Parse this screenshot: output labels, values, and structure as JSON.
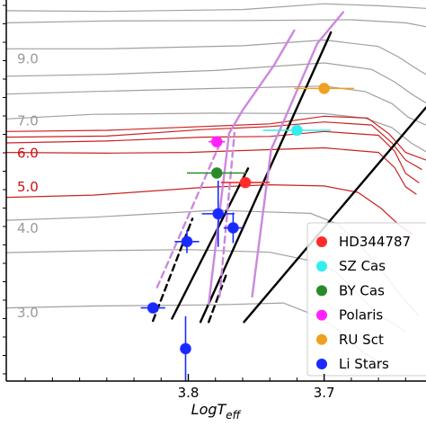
{
  "chart_data": {
    "type": "scatter",
    "x_label": "LogT_eff",
    "x_label_base": "LogT",
    "x_label_sub": "eff",
    "x_range": [
      3.934,
      3.625
    ],
    "y_range": [
      0.0,
      1.0
    ],
    "x_ticks": [
      {
        "value": 3.8,
        "label": "3.8"
      },
      {
        "value": 3.7,
        "label": "3.7"
      }
    ],
    "mass_labels": [
      {
        "text": "9.0",
        "color": "#999999",
        "y": 0.845
      },
      {
        "text": "7.0",
        "color": "#999999",
        "y": 0.683
      },
      {
        "text": "6.0",
        "color": "#cc1111",
        "y": 0.598
      },
      {
        "text": "5.0",
        "color": "#cc1111",
        "y": 0.51
      },
      {
        "text": "4.0",
        "color": "#999999",
        "y": 0.401
      },
      {
        "text": "3.0",
        "color": "#999999",
        "y": 0.179
      }
    ],
    "legend": [
      {
        "label": "HD344787",
        "color": "#ff2b2b"
      },
      {
        "label": "SZ Cas",
        "color": "#33eeee"
      },
      {
        "label": "BY Cas",
        "color": "#2a8a2a"
      },
      {
        "label": "Polaris",
        "color": "#ff22ff"
      },
      {
        "label": "RU Sct",
        "color": "#f0a020"
      },
      {
        "label": "Li Stars",
        "color": "#1a2aff"
      }
    ],
    "stars": [
      {
        "name": "HD344787",
        "color": "#ff2b2b",
        "x": 3.758,
        "y": 0.521,
        "xerr": 0.018,
        "yerr": 0.0
      },
      {
        "name": "SZ Cas",
        "color": "#33eeee",
        "x": 3.72,
        "y": 0.658,
        "xerr": 0.025,
        "yerr": 0.0
      },
      {
        "name": "BY Cas",
        "color": "#2a8a2a",
        "x": 3.779,
        "y": 0.546,
        "xerr": 0.022,
        "yerr": 0.0
      },
      {
        "name": "Polaris",
        "color": "#ff22ff",
        "x": 3.779,
        "y": 0.628,
        "xerr": 0.006,
        "yerr": 0.0
      },
      {
        "name": "RU Sct",
        "color": "#f0a020",
        "x": 3.7,
        "y": 0.768,
        "xerr": 0.022,
        "yerr": 0.0
      },
      {
        "name": "Li Stars",
        "color": "#1a2aff",
        "x": 3.778,
        "y": 0.439,
        "xerr": 0.012,
        "yerr": 0.087
      },
      {
        "name": "Li Stars",
        "color": "#1a2aff",
        "x": 3.767,
        "y": 0.402,
        "xerr": 0.007,
        "yerr": 0.04
      },
      {
        "name": "Li Stars",
        "color": "#1a2aff",
        "x": 3.801,
        "y": 0.366,
        "xerr": 0.009,
        "yerr": 0.03
      },
      {
        "name": "Li Stars",
        "color": "#1a2aff",
        "x": 3.826,
        "y": 0.192,
        "xerr": 0.009,
        "yerr": 0.0
      },
      {
        "name": "Li Stars",
        "color": "#1a2aff",
        "x": 3.802,
        "y": 0.085,
        "xerr": 0.0,
        "yerr": 0.085
      }
    ],
    "edges": [
      {
        "color": "#000000",
        "dash": false,
        "points": [
          [
            3.791,
            0.155
          ],
          [
            3.695,
            0.915
          ]
        ]
      },
      {
        "color": "#000000",
        "dash": false,
        "points": [
          [
            3.812,
            0.164
          ],
          [
            3.756,
            0.558
          ]
        ]
      },
      {
        "color": "#000000",
        "dash": false,
        "points": [
          [
            3.759,
            0.155
          ],
          [
            3.625,
            0.718
          ]
        ]
      },
      {
        "color": "#000000",
        "dash": true,
        "points": [
          [
            3.826,
            0.158
          ],
          [
            3.797,
            0.426
          ]
        ]
      },
      {
        "color": "#000000",
        "dash": true,
        "points": [
          [
            3.785,
            0.155
          ],
          [
            3.772,
            0.28
          ]
        ]
      },
      {
        "color": "#cc88dd",
        "dash": false,
        "points": [
          [
            3.785,
            0.202
          ],
          [
            3.77,
            0.65
          ],
          [
            3.76,
            0.711
          ],
          [
            3.737,
            0.828
          ],
          [
            3.722,
            0.92
          ]
        ]
      },
      {
        "color": "#cc88dd",
        "dash": false,
        "points": [
          [
            3.753,
            0.222
          ],
          [
            3.739,
            0.608
          ],
          [
            3.73,
            0.68
          ],
          [
            3.705,
            0.886
          ],
          [
            3.686,
            0.968
          ]
        ]
      },
      {
        "color": "#cc88dd",
        "dash": true,
        "points": [
          [
            3.823,
            0.246
          ],
          [
            3.778,
            0.613
          ]
        ]
      },
      {
        "color": "#cc88dd",
        "dash": true,
        "points": [
          [
            3.777,
            0.222
          ],
          [
            3.766,
            0.651
          ]
        ]
      }
    ],
    "tracks": [
      {
        "color": "#a0a0a0",
        "points": [
          [
            3.934,
            0.192
          ],
          [
            3.87,
            0.197
          ],
          [
            3.78,
            0.2
          ],
          [
            3.73,
            0.205
          ],
          [
            3.705,
            0.17
          ],
          [
            3.69,
            0.135
          ],
          [
            3.672,
            0.077
          ],
          [
            3.655,
            0.04
          ]
        ]
      },
      {
        "color": "#a0a0a0",
        "points": [
          [
            3.934,
            0.337
          ],
          [
            3.87,
            0.342
          ],
          [
            3.8,
            0.345
          ],
          [
            3.74,
            0.338
          ],
          [
            3.705,
            0.312
          ],
          [
            3.69,
            0.283
          ],
          [
            3.676,
            0.23
          ],
          [
            3.66,
            0.175
          ],
          [
            3.64,
            0.13
          ]
        ]
      },
      {
        "color": "#a0a0a0",
        "points": [
          [
            3.934,
            0.422
          ],
          [
            3.87,
            0.43
          ],
          [
            3.78,
            0.448
          ],
          [
            3.71,
            0.44
          ],
          [
            3.69,
            0.412
          ],
          [
            3.675,
            0.362
          ],
          [
            3.66,
            0.302
          ],
          [
            3.643,
            0.222
          ],
          [
            3.63,
            0.17
          ]
        ]
      },
      {
        "color": "#a0a0a0",
        "points": [
          [
            3.934,
            0.688
          ],
          [
            3.87,
            0.7
          ],
          [
            3.78,
            0.703
          ],
          [
            3.7,
            0.702
          ],
          [
            3.67,
            0.69
          ],
          [
            3.65,
            0.665
          ],
          [
            3.636,
            0.625
          ],
          [
            3.625,
            0.602
          ]
        ]
      },
      {
        "color": "#a0a0a0",
        "points": [
          [
            3.934,
            0.753
          ],
          [
            3.87,
            0.76
          ],
          [
            3.78,
            0.768
          ],
          [
            3.7,
            0.774
          ],
          [
            3.67,
            0.76
          ],
          [
            3.65,
            0.728
          ],
          [
            3.638,
            0.692
          ],
          [
            3.625,
            0.672
          ]
        ]
      },
      {
        "color": "#a0a0a0",
        "points": [
          [
            3.934,
            0.8
          ],
          [
            3.86,
            0.805
          ],
          [
            3.78,
            0.815
          ],
          [
            3.7,
            0.835
          ],
          [
            3.665,
            0.818
          ],
          [
            3.648,
            0.785
          ],
          [
            3.635,
            0.752
          ],
          [
            3.625,
            0.73
          ]
        ]
      },
      {
        "color": "#a0a0a0",
        "points": [
          [
            3.934,
            0.872
          ],
          [
            3.86,
            0.872
          ],
          [
            3.76,
            0.88
          ],
          [
            3.7,
            0.895
          ],
          [
            3.66,
            0.878
          ],
          [
            3.645,
            0.85
          ],
          [
            3.63,
            0.815
          ],
          [
            3.625,
            0.805
          ]
        ]
      },
      {
        "color": "#a0a0a0",
        "points": [
          [
            3.934,
            0.94
          ],
          [
            3.86,
            0.945
          ],
          [
            3.76,
            0.946
          ],
          [
            3.68,
            0.948
          ],
          [
            3.64,
            0.94
          ],
          [
            3.625,
            0.93
          ]
        ]
      },
      {
        "color": "#a0a0a0",
        "points": [
          [
            3.934,
            0.972
          ],
          [
            3.86,
            0.97
          ],
          [
            3.76,
            0.975
          ],
          [
            3.7,
            0.99
          ],
          [
            3.66,
            0.985
          ],
          [
            3.625,
            0.978
          ]
        ]
      },
      {
        "color": "#cc2222",
        "points": [
          [
            3.934,
            0.482
          ],
          [
            3.87,
            0.488
          ],
          [
            3.79,
            0.508
          ],
          [
            3.74,
            0.515
          ],
          [
            3.7,
            0.512
          ],
          [
            3.675,
            0.495
          ],
          [
            3.658,
            0.453
          ],
          [
            3.645,
            0.41
          ],
          [
            3.635,
            0.385
          ]
        ]
      },
      {
        "color": "#cc2222",
        "points": [
          [
            3.934,
            0.6
          ],
          [
            3.86,
            0.598
          ],
          [
            3.8,
            0.6
          ],
          [
            3.76,
            0.605
          ],
          [
            3.7,
            0.612
          ],
          [
            3.66,
            0.6
          ],
          [
            3.648,
            0.56
          ],
          [
            3.64,
            0.51
          ],
          [
            3.632,
            0.49
          ]
        ]
      },
      {
        "color": "#cc2222",
        "points": [
          [
            3.934,
            0.625
          ],
          [
            3.86,
            0.63
          ],
          [
            3.79,
            0.64
          ],
          [
            3.74,
            0.642
          ],
          [
            3.7,
            0.655
          ],
          [
            3.66,
            0.645
          ],
          [
            3.648,
            0.603
          ],
          [
            3.64,
            0.545
          ],
          [
            3.63,
            0.52
          ]
        ]
      },
      {
        "color": "#cc2222",
        "points": [
          [
            3.934,
            0.64
          ],
          [
            3.86,
            0.643
          ],
          [
            3.79,
            0.66
          ],
          [
            3.74,
            0.668
          ],
          [
            3.7,
            0.68
          ],
          [
            3.665,
            0.672
          ],
          [
            3.65,
            0.625
          ],
          [
            3.64,
            0.58
          ],
          [
            3.628,
            0.555
          ]
        ]
      },
      {
        "color": "#cc2222",
        "points": [
          [
            3.934,
            0.655
          ],
          [
            3.86,
            0.658
          ],
          [
            3.79,
            0.668
          ],
          [
            3.74,
            0.675
          ],
          [
            3.7,
            0.695
          ],
          [
            3.668,
            0.69
          ],
          [
            3.652,
            0.648
          ],
          [
            3.64,
            0.6
          ],
          [
            3.625,
            0.58
          ]
        ]
      }
    ]
  }
}
